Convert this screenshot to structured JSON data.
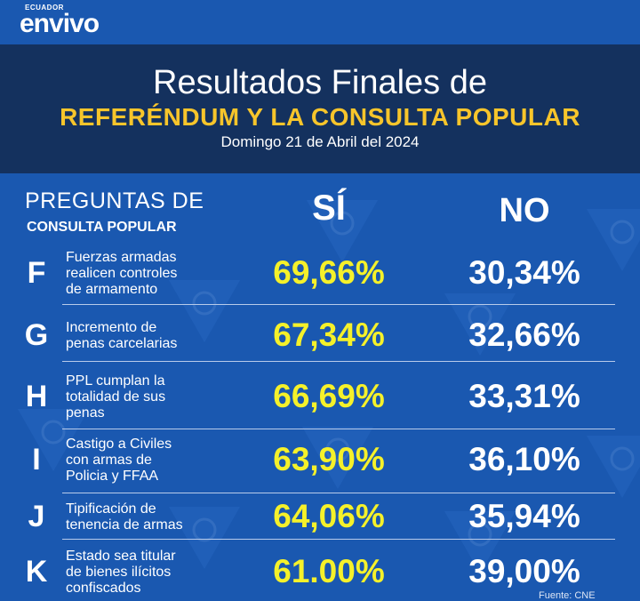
{
  "brand": {
    "small": "ECUADOR",
    "main": "envivo"
  },
  "header": {
    "line1": "Resultados Finales de",
    "line2": "REFERÉNDUM Y LA CONSULTA POPULAR",
    "date": "Domingo 21 de Abril del 2024"
  },
  "columns": {
    "label_line1": "PREGUNTAS DE",
    "label_line2": "CONSULTA POPULAR",
    "yes": "SÍ",
    "no": "NO"
  },
  "rows": [
    {
      "letter": "F",
      "lines": [
        "Fuerzas armadas",
        "realicen controles",
        "de armamento"
      ],
      "yes": "69,66%",
      "no": "30,34%"
    },
    {
      "letter": "G",
      "lines": [
        "Incremento de",
        "penas carcelarias"
      ],
      "yes": "67,34%",
      "no": "32,66%"
    },
    {
      "letter": "H",
      "lines": [
        "PPL cumplan la",
        "totalidad de sus",
        "penas"
      ],
      "yes": "66,69%",
      "no": "33,31%"
    },
    {
      "letter": "I",
      "lines": [
        "Castigo a Civiles",
        "con armas de",
        "Policia y FFAA"
      ],
      "yes": "63,90%",
      "no": "36,10%"
    },
    {
      "letter": "J",
      "lines": [
        "Tipificación de",
        "tenencia de armas"
      ],
      "yes": "64,06%",
      "no": "35,94%"
    },
    {
      "letter": "K",
      "lines": [
        "Estado sea titular",
        "de bienes ilícitos",
        "confiscados"
      ],
      "yes": "61.00%",
      "no": "39,00%"
    }
  ],
  "source": "Fuente: CNE",
  "colors": {
    "background": "#1a58b0",
    "panel": "#14315e",
    "accent": "#f7c52b",
    "yes_value": "#f5f12a"
  }
}
